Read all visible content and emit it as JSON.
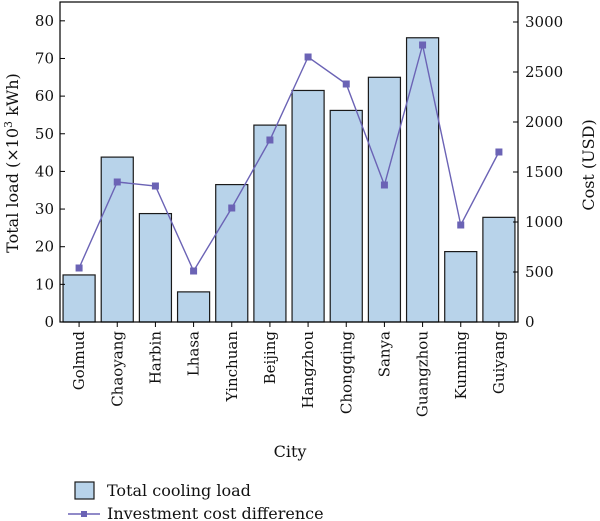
{
  "chart_data": {
    "type": "bar",
    "categories": [
      "Golmud",
      "Chaoyang",
      "Harbin",
      "Lhasa",
      "Yinchuan",
      "Beijing",
      "Hangzhou",
      "Chongqing",
      "Sanya",
      "Guangzhou",
      "Kunming",
      "Guiyang"
    ],
    "xlabel": "City",
    "ylabel_left_prefix": "Total load (×10",
    "ylabel_left_sup": "3",
    "ylabel_left_suffix": " kWh)",
    "ylabel_right": "Cost (USD)",
    "ylim_left": [
      0,
      85
    ],
    "yticks_left": [
      0,
      10,
      20,
      30,
      40,
      50,
      60,
      70,
      80
    ],
    "ylim_right": [
      0,
      3200
    ],
    "yticks_right": [
      0,
      500,
      1000,
      1500,
      2000,
      2500,
      3000
    ],
    "series": [
      {
        "name": "Total cooling load",
        "type": "bar",
        "axis": "left",
        "color": "#b8d3ea",
        "values": [
          12.5,
          43.8,
          28.8,
          8.0,
          36.5,
          52.3,
          61.5,
          56.2,
          65.0,
          75.5,
          18.7,
          27.8
        ]
      },
      {
        "name": "Investment cost difference",
        "type": "line",
        "axis": "right",
        "color": "#6b63b5",
        "values": [
          540,
          1400,
          1360,
          510,
          1140,
          1820,
          2650,
          2380,
          1370,
          2770,
          970,
          1700
        ]
      }
    ],
    "legend_position": "bottom-left",
    "grid": false
  }
}
